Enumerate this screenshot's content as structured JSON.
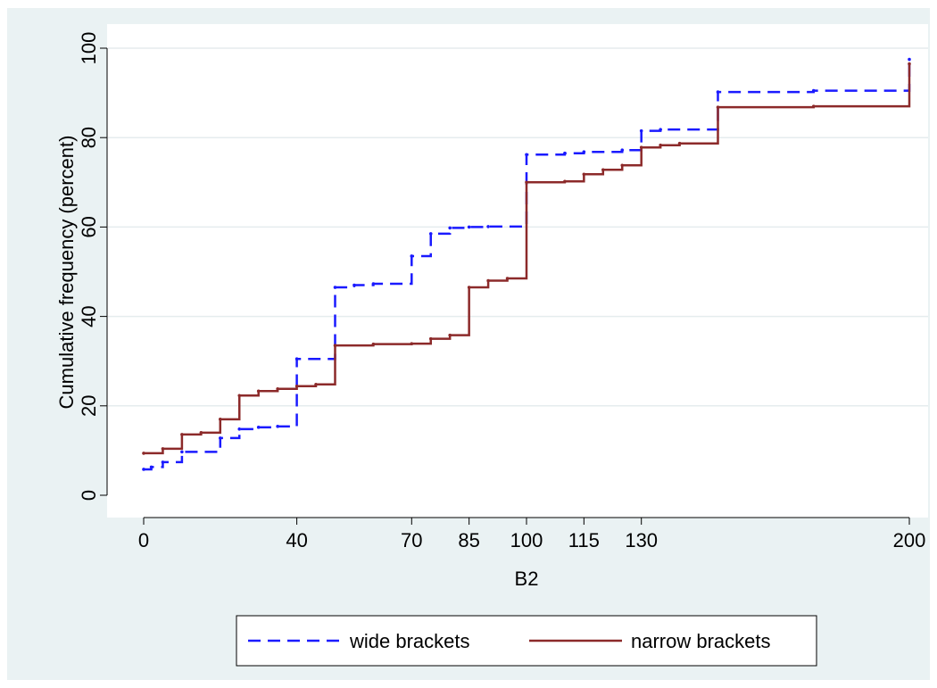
{
  "chart_data": {
    "type": "line",
    "step": true,
    "title": "",
    "xlabel": "B2",
    "ylabel": "Cumulative frequency (percent)",
    "xlim": [
      0,
      200
    ],
    "ylim": [
      0,
      100
    ],
    "x_ticks": [
      0,
      40,
      70,
      85,
      100,
      115,
      130,
      200
    ],
    "y_ticks": [
      0,
      20,
      40,
      60,
      80,
      100
    ],
    "grid": "horizontal",
    "legend_position": "bottom",
    "series": [
      {
        "name": "wide brackets",
        "color": "#1a1aff",
        "dash": "dashed",
        "points": [
          [
            0,
            5.8
          ],
          [
            2,
            6.3
          ],
          [
            5,
            7.4
          ],
          [
            10,
            9.7
          ],
          [
            20,
            12.8
          ],
          [
            25,
            14.8
          ],
          [
            30,
            15.2
          ],
          [
            35,
            15.4
          ],
          [
            40,
            30.5
          ],
          [
            50,
            46.5
          ],
          [
            55,
            47
          ],
          [
            60,
            47.3
          ],
          [
            70,
            53.5
          ],
          [
            75,
            58.5
          ],
          [
            80,
            59.8
          ],
          [
            85,
            60
          ],
          [
            90,
            60.1
          ],
          [
            100,
            76.2
          ],
          [
            110,
            76.5
          ],
          [
            115,
            76.8
          ],
          [
            125,
            77.2
          ],
          [
            130,
            81.5
          ],
          [
            135,
            81.8
          ],
          [
            150,
            90.2
          ],
          [
            175,
            90.5
          ],
          [
            200,
            97.5
          ]
        ]
      },
      {
        "name": "narrow brackets",
        "color": "#8c2a2a",
        "dash": "solid",
        "points": [
          [
            0,
            9.4
          ],
          [
            5,
            10.4
          ],
          [
            10,
            13.6
          ],
          [
            15,
            14
          ],
          [
            20,
            17
          ],
          [
            25,
            22.3
          ],
          [
            30,
            23.3
          ],
          [
            35,
            23.8
          ],
          [
            40,
            24.4
          ],
          [
            45,
            24.8
          ],
          [
            50,
            33.5
          ],
          [
            60,
            33.8
          ],
          [
            70,
            33.9
          ],
          [
            75,
            35
          ],
          [
            80,
            35.8
          ],
          [
            85,
            46.5
          ],
          [
            90,
            48
          ],
          [
            95,
            48.5
          ],
          [
            100,
            70
          ],
          [
            110,
            70.2
          ],
          [
            115,
            71.8
          ],
          [
            120,
            72.8
          ],
          [
            125,
            73.8
          ],
          [
            130,
            77.8
          ],
          [
            135,
            78.3
          ],
          [
            140,
            78.7
          ],
          [
            150,
            86.8
          ],
          [
            175,
            87
          ],
          [
            200,
            96.5
          ]
        ]
      }
    ]
  }
}
